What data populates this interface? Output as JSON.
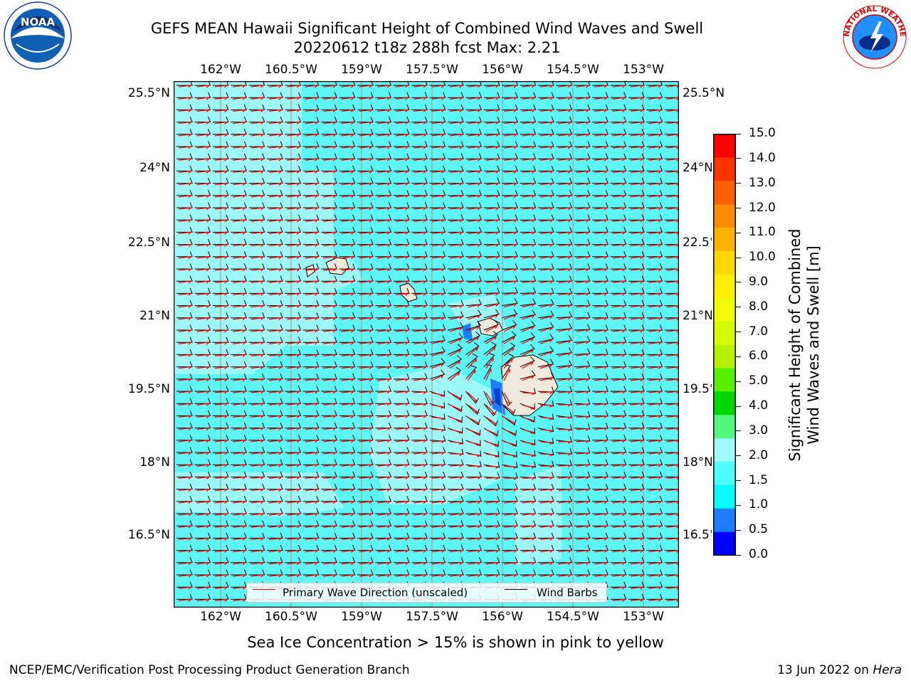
{
  "header": {
    "title_line1": "GEFS MEAN Hawaii Significant Height of Combined Wind Waves and Swell",
    "title_line2": "20220612 t18z 288h fcst   Max: 2.21"
  },
  "logos": {
    "left": {
      "icon": "noaa-logo",
      "text": "NOAA"
    },
    "right": {
      "icon": "nws-logo",
      "text": "NATIONAL WEATHER SERVICE"
    }
  },
  "map": {
    "lon_labels": [
      "162°W",
      "160.5°W",
      "159°W",
      "157.5°W",
      "156°W",
      "154.5°W",
      "153°W"
    ],
    "lat_labels": [
      "25.5°N",
      "24°N",
      "22.5°N",
      "21°N",
      "19.5°N",
      "18°N",
      "16.5°N"
    ],
    "extent": {
      "lon": [
        -163.0,
        -152.2
      ],
      "lat": [
        14.8,
        25.7
      ]
    },
    "ocean_color": "#5ef5f5",
    "light_color": "#9ef7f7",
    "land_color": "#efeadb",
    "wave_arrow_color": "#ff0000",
    "wind_barb_color": "#000000"
  },
  "legend": {
    "wave_label": "Primary Wave Direction (unscaled)",
    "wind_label": "Wind Barbs"
  },
  "colorbar": {
    "label_line1": "Significant Height of Combined",
    "label_line2": "Wind Waves and Swell [m]",
    "ticks": [
      "15.0",
      "14.0",
      "13.0",
      "12.0",
      "11.0",
      "10.0",
      "9.0",
      "8.0",
      "7.0",
      "6.0",
      "5.0",
      "4.0",
      "3.0",
      "2.0",
      "1.5",
      "1.0",
      "0.5",
      "0.0"
    ],
    "colors": [
      "#0000ff",
      "#1e7cff",
      "#00ffff",
      "#4dfcfc",
      "#9dfbfb",
      "#52f77e",
      "#00d700",
      "#56f000",
      "#b4f000",
      "#d6fb00",
      "#f0fb00",
      "#fff000",
      "#ffd700",
      "#ffb200",
      "#ff8c00",
      "#ff6000",
      "#ff3300",
      "#ff0000"
    ]
  },
  "footer": {
    "note": "Sea Ice Concentration > 15% is shown in pink to yellow",
    "left": "NCEP/EMC/Verification Post Processing Product Generation Branch",
    "right_date": "13 Jun 2022 on ",
    "right_host": "Hera"
  }
}
